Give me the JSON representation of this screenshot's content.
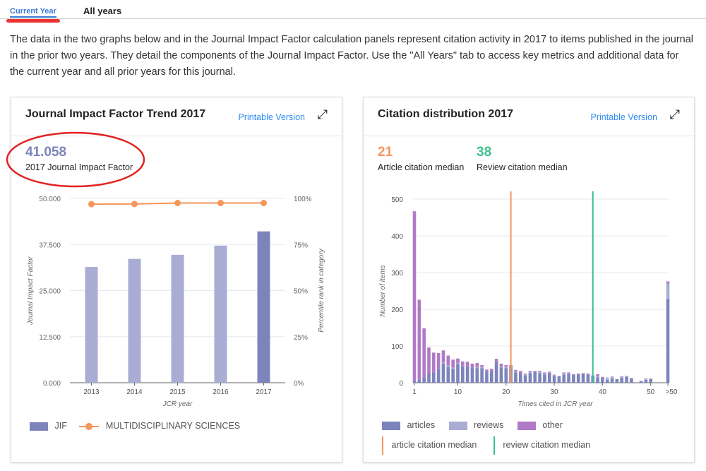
{
  "tabs": {
    "current": "Current Year",
    "all": "All years"
  },
  "intro": "The data in the two graphs below and in the Journal Impact Factor calculation panels represent citation activity in 2017 to items published in the journal in the prior two years. They detail the components of the Journal Impact Factor. Use the \"All Years\" tab to access key metrics and additional data for the current year and all prior years for this journal.",
  "jif_panel": {
    "title": "Journal Impact Factor Trend 2017",
    "printable": "Printable Version",
    "value": "41.058",
    "value_label": "2017 Journal Impact Factor"
  },
  "cit_panel": {
    "title": "Citation distribution 2017",
    "printable": "Printable Version",
    "article_median": "21",
    "article_median_label": "Article citation median",
    "review_median": "38",
    "review_median_label": "Review citation median"
  },
  "colors": {
    "jif": "#a9acd3",
    "jif_current": "#7c84bb",
    "rank": "#f5965a",
    "articles": "#7c84bb",
    "reviews": "#a9acd3",
    "other": "#b07ac6",
    "article_median": "#f5965a",
    "review_median": "#3cc08c",
    "accent": "#2f8cf0",
    "annotation": "#e32222"
  },
  "chart_data": [
    {
      "type": "bar",
      "title": "Journal Impact Factor Trend 2017",
      "xlabel": "JCR year",
      "ylabel": "Journal Impact Factor",
      "y2label": "Percentile rank in category",
      "categories": [
        "2013",
        "2014",
        "2015",
        "2016",
        "2017"
      ],
      "ylim": [
        0,
        50
      ],
      "yticks": [
        "0.000",
        "12.500",
        "25.000",
        "37.500",
        "50.000"
      ],
      "y2lim": [
        0,
        100
      ],
      "y2ticks": [
        "0%",
        "25%",
        "50%",
        "75%",
        "100%"
      ],
      "series": [
        {
          "name": "JIF",
          "type": "bar",
          "values": [
            31.4,
            33.6,
            34.7,
            37.2,
            41.058
          ]
        },
        {
          "name": "MULTIDISCIPLINARY SCIENCES",
          "type": "line",
          "values": [
            96.9,
            97.0,
            97.5,
            97.5,
            97.5
          ]
        }
      ]
    },
    {
      "type": "bar",
      "stacked": true,
      "title": "Citation distribution 2017",
      "xlabel": "Times cited in JCR year",
      "ylabel": "Number of items",
      "ylim": [
        0,
        500
      ],
      "yticks": [
        "0",
        "100",
        "200",
        "300",
        "400",
        "500"
      ],
      "xticks": [
        "1",
        "10",
        "20",
        "30",
        "40",
        "50",
        ">50"
      ],
      "x": [
        1,
        2,
        3,
        4,
        5,
        6,
        7,
        8,
        9,
        10,
        11,
        12,
        13,
        14,
        15,
        16,
        17,
        18,
        19,
        20,
        21,
        22,
        23,
        24,
        25,
        26,
        27,
        28,
        29,
        30,
        31,
        32,
        33,
        34,
        35,
        36,
        37,
        38,
        39,
        40,
        41,
        42,
        43,
        44,
        45,
        46,
        47,
        48,
        49,
        50,
        ">50"
      ],
      "series": [
        {
          "name": "articles",
          "values": [
            5,
            8,
            15,
            25,
            28,
            37,
            52,
            43,
            38,
            50,
            45,
            44,
            42,
            40,
            40,
            30,
            33,
            56,
            42,
            40,
            40,
            28,
            24,
            20,
            26,
            30,
            26,
            22,
            26,
            18,
            18,
            22,
            24,
            21,
            22,
            24,
            22,
            18,
            15,
            14,
            8,
            12,
            10,
            14,
            16,
            11,
            0,
            4,
            8,
            10,
            228
          ]
        },
        {
          "name": "reviews",
          "values": [
            0,
            0,
            0,
            0,
            0,
            0,
            3,
            4,
            3,
            3,
            2,
            0,
            0,
            3,
            3,
            0,
            0,
            0,
            2,
            4,
            0,
            3,
            0,
            3,
            3,
            0,
            3,
            3,
            2,
            2,
            0,
            4,
            2,
            0,
            0,
            0,
            0,
            0,
            3,
            0,
            5,
            4,
            0,
            3,
            2,
            0,
            0,
            0,
            3,
            2,
            42
          ]
        },
        {
          "name": "other",
          "values": [
            462,
            218,
            133,
            71,
            54,
            44,
            33,
            27,
            22,
            13,
            11,
            13,
            10,
            11,
            5,
            6,
            5,
            9,
            8,
            4,
            8,
            4,
            8,
            2,
            3,
            2,
            3,
            3,
            2,
            2,
            0,
            2,
            2,
            2,
            3,
            2,
            3,
            2,
            5,
            2,
            1,
            1,
            0,
            1,
            1,
            2,
            0,
            1,
            1,
            0,
            6
          ]
        }
      ],
      "medians": [
        {
          "name": "article citation median",
          "value": 21
        },
        {
          "name": "review citation median",
          "value": 38
        }
      ]
    }
  ]
}
